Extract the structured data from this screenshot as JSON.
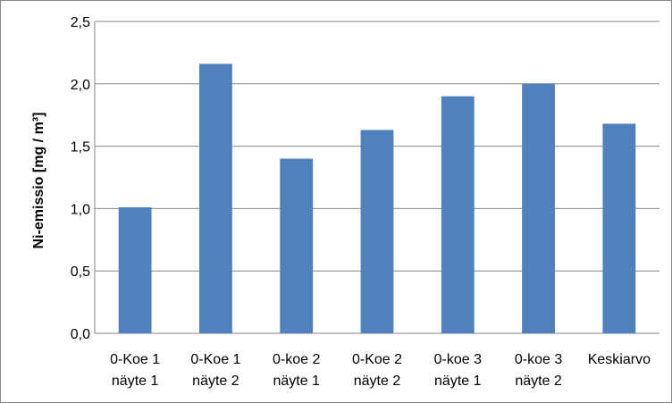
{
  "chart_data": {
    "type": "bar",
    "title": "",
    "xlabel": "",
    "ylabel": "Ni-emissio [mg / m³]",
    "categories": [
      [
        "0-Koe 1",
        "näyte 1"
      ],
      [
        "0-Koe 1",
        "näyte 2"
      ],
      [
        "0-koe 2",
        "näyte 1"
      ],
      [
        "0-Koe 2",
        "näyte 2"
      ],
      [
        "0-koe 3",
        "näyte 1"
      ],
      [
        "0-koe 3",
        "näyte 2"
      ],
      [
        "Keskiarvo"
      ]
    ],
    "values": [
      1.01,
      2.16,
      1.4,
      1.63,
      1.9,
      2.0,
      1.68
    ],
    "ylim": [
      0,
      2.5
    ],
    "yticks": [
      0,
      0.5,
      1.0,
      1.5,
      2.0,
      2.5
    ],
    "ytick_labels": [
      "0,0",
      "0,5",
      "1,0",
      "1,5",
      "2,0",
      "2,5"
    ],
    "grid": true,
    "legend": "none",
    "bar_color": "#4F81BD",
    "gridline_color": "#868686"
  }
}
